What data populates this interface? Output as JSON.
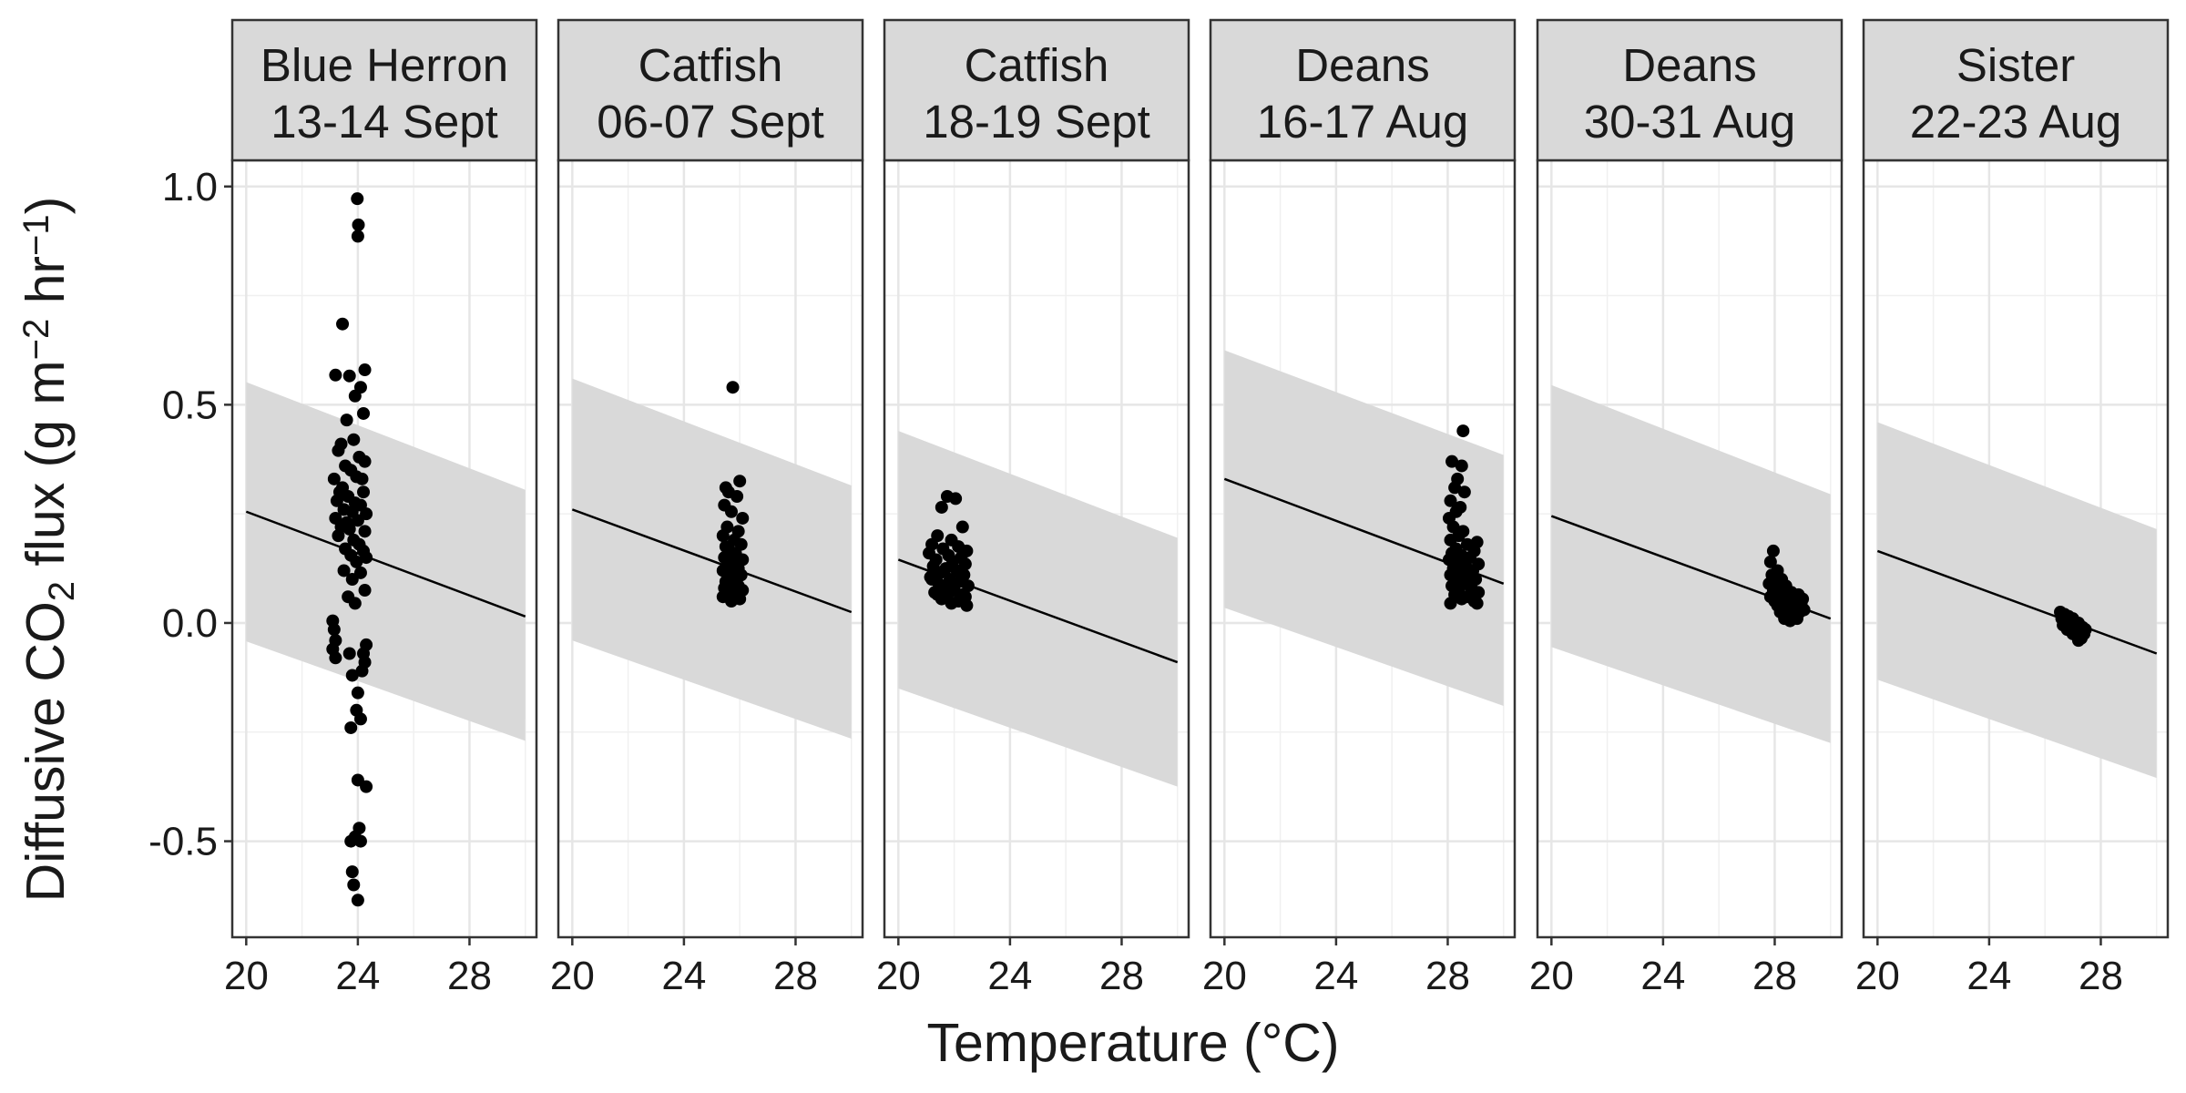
{
  "chart_data": {
    "type": "scatter",
    "xlabel": "Temperature (°C)",
    "ylabel": {
      "prefix": "Diffusive CO",
      "sub": "2",
      "middle": " flux (g m",
      "sup1": "−2",
      "middle2": " hr",
      "sup2": "−1",
      "suffix": ")"
    },
    "xlim": [
      19.5,
      30.4
    ],
    "ylim": [
      -0.72,
      1.06
    ],
    "xticks": [
      20,
      24,
      28
    ],
    "yticks": [
      1.0,
      0.5,
      0.0,
      -0.5
    ],
    "ytick_labels": [
      "1.0",
      "0.5",
      "0.0",
      "-0.5"
    ],
    "grid": true,
    "panels": [
      {
        "label": [
          "Blue Herron",
          "13-14 Sept"
        ],
        "fit": {
          "x": [
            20,
            30
          ],
          "y": [
            0.255,
            0.015
          ]
        },
        "ribbon": {
          "x": [
            20,
            30
          ],
          "upper": [
            0.552,
            0.305
          ],
          "lower": [
            -0.042,
            -0.27
          ]
        },
        "points": [
          [
            23.98,
            0.972
          ],
          [
            24.02,
            0.912
          ],
          [
            24.0,
            0.886
          ],
          [
            23.45,
            0.685
          ],
          [
            23.2,
            0.568
          ],
          [
            23.7,
            0.566
          ],
          [
            24.25,
            0.58
          ],
          [
            24.1,
            0.54
          ],
          [
            23.9,
            0.52
          ],
          [
            24.2,
            0.48
          ],
          [
            23.6,
            0.465
          ],
          [
            23.4,
            0.41
          ],
          [
            23.3,
            0.395
          ],
          [
            23.85,
            0.42
          ],
          [
            24.05,
            0.38
          ],
          [
            24.25,
            0.37
          ],
          [
            23.55,
            0.36
          ],
          [
            23.75,
            0.35
          ],
          [
            23.15,
            0.33
          ],
          [
            23.95,
            0.335
          ],
          [
            24.15,
            0.33
          ],
          [
            23.45,
            0.31
          ],
          [
            23.35,
            0.3
          ],
          [
            23.65,
            0.29
          ],
          [
            23.25,
            0.28
          ],
          [
            24.2,
            0.3
          ],
          [
            23.9,
            0.275
          ],
          [
            24.1,
            0.27
          ],
          [
            23.5,
            0.26
          ],
          [
            23.8,
            0.255
          ],
          [
            24.3,
            0.25
          ],
          [
            23.2,
            0.24
          ],
          [
            24.0,
            0.235
          ],
          [
            23.6,
            0.23
          ],
          [
            23.4,
            0.22
          ],
          [
            23.7,
            0.215
          ],
          [
            24.25,
            0.21
          ],
          [
            23.3,
            0.2
          ],
          [
            23.85,
            0.19
          ],
          [
            24.05,
            0.18
          ],
          [
            23.55,
            0.17
          ],
          [
            24.2,
            0.165
          ],
          [
            23.75,
            0.155
          ],
          [
            24.3,
            0.15
          ],
          [
            23.95,
            0.14
          ],
          [
            23.5,
            0.12
          ],
          [
            23.8,
            0.1
          ],
          [
            24.1,
            0.115
          ],
          [
            24.25,
            0.075
          ],
          [
            23.65,
            0.06
          ],
          [
            23.9,
            0.045
          ],
          [
            23.1,
            0.005
          ],
          [
            23.15,
            -0.015
          ],
          [
            23.2,
            -0.04
          ],
          [
            23.1,
            -0.06
          ],
          [
            23.2,
            -0.08
          ],
          [
            24.3,
            -0.05
          ],
          [
            24.2,
            -0.07
          ],
          [
            24.25,
            -0.09
          ],
          [
            24.15,
            -0.11
          ],
          [
            23.7,
            -0.07
          ],
          [
            23.8,
            -0.12
          ],
          [
            24.0,
            -0.16
          ],
          [
            23.95,
            -0.2
          ],
          [
            24.1,
            -0.22
          ],
          [
            23.75,
            -0.24
          ],
          [
            24.0,
            -0.36
          ],
          [
            24.3,
            -0.375
          ],
          [
            24.05,
            -0.47
          ],
          [
            23.9,
            -0.49
          ],
          [
            24.1,
            -0.5
          ],
          [
            23.75,
            -0.5
          ],
          [
            23.8,
            -0.57
          ],
          [
            23.85,
            -0.6
          ],
          [
            24.0,
            -0.635
          ]
        ]
      },
      {
        "label": [
          "Catfish",
          "06-07 Sept"
        ],
        "fit": {
          "x": [
            20,
            30
          ],
          "y": [
            0.26,
            0.025
          ]
        },
        "ribbon": {
          "x": [
            20,
            30
          ],
          "upper": [
            0.56,
            0.315
          ],
          "lower": [
            -0.04,
            -0.265
          ]
        },
        "points": [
          [
            25.75,
            0.54
          ],
          [
            25.5,
            0.31
          ],
          [
            26.0,
            0.325
          ],
          [
            25.6,
            0.3
          ],
          [
            25.9,
            0.29
          ],
          [
            25.45,
            0.27
          ],
          [
            25.7,
            0.255
          ],
          [
            26.1,
            0.24
          ],
          [
            25.55,
            0.22
          ],
          [
            25.95,
            0.21
          ],
          [
            25.4,
            0.2
          ],
          [
            25.8,
            0.19
          ],
          [
            26.05,
            0.18
          ],
          [
            25.5,
            0.175
          ],
          [
            25.65,
            0.165
          ],
          [
            25.85,
            0.16
          ],
          [
            25.45,
            0.15
          ],
          [
            26.1,
            0.145
          ],
          [
            25.75,
            0.14
          ],
          [
            25.55,
            0.13
          ],
          [
            25.95,
            0.125
          ],
          [
            25.4,
            0.12
          ],
          [
            25.65,
            0.115
          ],
          [
            26.05,
            0.11
          ],
          [
            25.85,
            0.1
          ],
          [
            25.5,
            0.095
          ],
          [
            25.7,
            0.09
          ],
          [
            25.95,
            0.085
          ],
          [
            25.45,
            0.08
          ],
          [
            26.1,
            0.075
          ],
          [
            25.6,
            0.07
          ],
          [
            25.8,
            0.065
          ],
          [
            25.4,
            0.06
          ],
          [
            26.0,
            0.055
          ],
          [
            25.7,
            0.05
          ]
        ]
      },
      {
        "label": [
          "Catfish",
          "18-19 Sept"
        ],
        "fit": {
          "x": [
            20,
            30
          ],
          "y": [
            0.145,
            -0.09
          ]
        },
        "ribbon": {
          "x": [
            20,
            30
          ],
          "upper": [
            0.44,
            0.195
          ],
          "lower": [
            -0.15,
            -0.375
          ]
        },
        "points": [
          [
            21.75,
            0.29
          ],
          [
            22.05,
            0.285
          ],
          [
            21.55,
            0.265
          ],
          [
            22.3,
            0.22
          ],
          [
            21.4,
            0.2
          ],
          [
            21.9,
            0.19
          ],
          [
            21.2,
            0.18
          ],
          [
            22.15,
            0.175
          ],
          [
            21.6,
            0.17
          ],
          [
            22.45,
            0.165
          ],
          [
            21.1,
            0.16
          ],
          [
            21.8,
            0.155
          ],
          [
            22.25,
            0.15
          ],
          [
            21.35,
            0.145
          ],
          [
            21.95,
            0.14
          ],
          [
            22.4,
            0.135
          ],
          [
            21.25,
            0.13
          ],
          [
            21.7,
            0.125
          ],
          [
            22.1,
            0.12
          ],
          [
            21.5,
            0.115
          ],
          [
            22.35,
            0.11
          ],
          [
            21.15,
            0.105
          ],
          [
            21.85,
            0.1
          ],
          [
            22.2,
            0.095
          ],
          [
            21.45,
            0.09
          ],
          [
            22.5,
            0.085
          ],
          [
            21.65,
            0.08
          ],
          [
            22.0,
            0.075
          ],
          [
            21.3,
            0.07
          ],
          [
            22.3,
            0.065
          ],
          [
            21.75,
            0.06
          ],
          [
            21.55,
            0.055
          ],
          [
            22.15,
            0.05
          ],
          [
            21.9,
            0.045
          ],
          [
            22.45,
            0.04
          ],
          [
            21.4,
            0.065
          ],
          [
            21.2,
            0.1
          ],
          [
            22.4,
            0.06
          ]
        ]
      },
      {
        "label": [
          "Deans",
          "16-17 Aug"
        ],
        "fit": {
          "x": [
            20,
            30
          ],
          "y": [
            0.33,
            0.09
          ]
        },
        "ribbon": {
          "x": [
            20,
            30
          ],
          "upper": [
            0.625,
            0.385
          ],
          "lower": [
            0.035,
            -0.19
          ]
        },
        "points": [
          [
            28.55,
            0.44
          ],
          [
            28.15,
            0.37
          ],
          [
            28.5,
            0.36
          ],
          [
            28.35,
            0.33
          ],
          [
            28.6,
            0.3
          ],
          [
            28.25,
            0.31
          ],
          [
            28.1,
            0.28
          ],
          [
            28.45,
            0.265
          ],
          [
            28.3,
            0.255
          ],
          [
            28.05,
            0.24
          ],
          [
            28.2,
            0.22
          ],
          [
            28.55,
            0.21
          ],
          [
            28.4,
            0.2
          ],
          [
            28.1,
            0.19
          ],
          [
            29.05,
            0.185
          ],
          [
            28.7,
            0.18
          ],
          [
            28.3,
            0.17
          ],
          [
            28.95,
            0.165
          ],
          [
            28.15,
            0.16
          ],
          [
            28.5,
            0.155
          ],
          [
            28.8,
            0.15
          ],
          [
            28.05,
            0.145
          ],
          [
            28.35,
            0.14
          ],
          [
            29.1,
            0.135
          ],
          [
            28.65,
            0.13
          ],
          [
            28.2,
            0.125
          ],
          [
            28.9,
            0.12
          ],
          [
            28.45,
            0.115
          ],
          [
            28.1,
            0.11
          ],
          [
            28.75,
            0.105
          ],
          [
            29.0,
            0.1
          ],
          [
            28.3,
            0.095
          ],
          [
            28.6,
            0.09
          ],
          [
            28.15,
            0.085
          ],
          [
            28.85,
            0.08
          ],
          [
            28.4,
            0.075
          ],
          [
            29.1,
            0.07
          ],
          [
            28.25,
            0.065
          ],
          [
            28.7,
            0.06
          ],
          [
            28.5,
            0.055
          ],
          [
            28.95,
            0.05
          ],
          [
            28.1,
            0.045
          ],
          [
            29.05,
            0.045
          ]
        ]
      },
      {
        "label": [
          "Deans",
          "30-31 Aug"
        ],
        "fit": {
          "x": [
            20,
            30
          ],
          "y": [
            0.245,
            0.01
          ]
        },
        "ribbon": {
          "x": [
            20,
            30
          ],
          "upper": [
            0.545,
            0.295
          ],
          "lower": [
            -0.055,
            -0.275
          ]
        },
        "points": [
          [
            27.95,
            0.165
          ],
          [
            27.85,
            0.14
          ],
          [
            28.1,
            0.12
          ],
          [
            27.9,
            0.11
          ],
          [
            28.25,
            0.1
          ],
          [
            28.05,
            0.095
          ],
          [
            27.8,
            0.09
          ],
          [
            28.4,
            0.085
          ],
          [
            28.15,
            0.08
          ],
          [
            27.95,
            0.075
          ],
          [
            28.6,
            0.07
          ],
          [
            28.3,
            0.065
          ],
          [
            28.85,
            0.065
          ],
          [
            27.85,
            0.06
          ],
          [
            28.5,
            0.06
          ],
          [
            29.0,
            0.055
          ],
          [
            28.2,
            0.055
          ],
          [
            28.7,
            0.05
          ],
          [
            28.0,
            0.05
          ],
          [
            28.4,
            0.045
          ],
          [
            28.95,
            0.045
          ],
          [
            28.1,
            0.04
          ],
          [
            28.6,
            0.04
          ],
          [
            28.8,
            0.035
          ],
          [
            28.3,
            0.035
          ],
          [
            29.05,
            0.03
          ],
          [
            28.5,
            0.03
          ],
          [
            28.2,
            0.025
          ],
          [
            28.9,
            0.025
          ],
          [
            28.7,
            0.02
          ],
          [
            28.4,
            0.02
          ],
          [
            28.6,
            0.015
          ],
          [
            28.8,
            0.01
          ],
          [
            28.35,
            0.01
          ],
          [
            28.55,
            0.005
          ]
        ]
      },
      {
        "label": [
          "Sister",
          "22-23 Aug"
        ],
        "fit": {
          "x": [
            20,
            30
          ],
          "y": [
            0.165,
            -0.07
          ]
        },
        "ribbon": {
          "x": [
            20,
            30
          ],
          "upper": [
            0.46,
            0.215
          ],
          "lower": [
            -0.13,
            -0.355
          ]
        },
        "points": [
          [
            26.55,
            0.025
          ],
          [
            26.7,
            0.02
          ],
          [
            26.85,
            0.015
          ],
          [
            26.6,
            0.01
          ],
          [
            27.0,
            0.01
          ],
          [
            26.75,
            0.005
          ],
          [
            27.2,
            0.0
          ],
          [
            26.9,
            -0.005
          ],
          [
            26.65,
            -0.005
          ],
          [
            27.1,
            -0.01
          ],
          [
            27.35,
            -0.01
          ],
          [
            26.8,
            -0.015
          ],
          [
            27.25,
            -0.02
          ],
          [
            27.0,
            -0.025
          ],
          [
            27.4,
            -0.025
          ],
          [
            27.15,
            -0.03
          ],
          [
            27.3,
            -0.035
          ],
          [
            27.2,
            -0.04
          ],
          [
            26.95,
            -0.02
          ],
          [
            27.45,
            -0.015
          ]
        ]
      }
    ]
  }
}
